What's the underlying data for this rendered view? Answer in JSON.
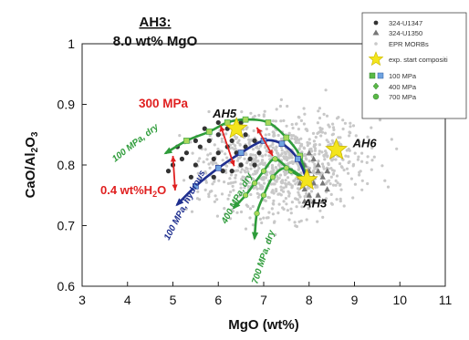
{
  "chart_data": {
    "type": "scatter",
    "title": "AH3:",
    "subtitle": "8.0 wt% MgO",
    "xlabel": "MgO (wt%)",
    "ylabel": "CaO/Al2O3",
    "ylabel_main": "CaO/Al",
    "ylabel_sub1": "2",
    "ylabel_mid": "O",
    "ylabel_sub2": "3",
    "xlim": [
      3,
      11
    ],
    "ylim": [
      0.6,
      1.0
    ],
    "xticks": [
      "3",
      "4",
      "5",
      "6",
      "7",
      "8",
      "9",
      "10",
      "11"
    ],
    "yticks": [
      "0.6",
      "0.7",
      "0.8",
      "0.9",
      "1"
    ],
    "legend": {
      "placement": "top-right",
      "entries": [
        "324-U1347",
        "324-U1350",
        "EPR MORBs",
        "exp. start compositi",
        "100 MPa",
        "400 MPa",
        "700 MPa"
      ]
    },
    "series": [
      {
        "name": "324-U1347",
        "color": "#333333",
        "marker": "circle",
        "x": [
          4.9,
          5.0,
          5.2,
          5.3,
          5.5,
          5.6,
          5.8,
          5.9,
          6.0,
          6.0,
          6.1,
          6.2,
          6.3,
          6.4,
          6.5,
          6.6,
          6.7,
          6.8,
          6.9,
          5.4,
          5.7,
          6.2,
          6.5,
          5.9,
          6.8,
          5.1,
          6.3,
          6.0,
          6.6,
          5.5
        ],
        "y": [
          0.79,
          0.8,
          0.81,
          0.82,
          0.8,
          0.83,
          0.84,
          0.81,
          0.82,
          0.85,
          0.79,
          0.83,
          0.84,
          0.82,
          0.8,
          0.83,
          0.81,
          0.84,
          0.82,
          0.78,
          0.86,
          0.86,
          0.87,
          0.78,
          0.8,
          0.83,
          0.79,
          0.87,
          0.85,
          0.84
        ]
      },
      {
        "name": "324-U1350",
        "color": "#777777",
        "marker": "triangle",
        "x": [
          7.8,
          7.9,
          8.0,
          8.1,
          8.2,
          8.3,
          8.4,
          7.9,
          8.1,
          8.2,
          8.0,
          8.3,
          8.1,
          7.8,
          8.2,
          8.0,
          8.4,
          7.9,
          8.1,
          8.3
        ],
        "y": [
          0.78,
          0.76,
          0.79,
          0.77,
          0.75,
          0.78,
          0.76,
          0.8,
          0.81,
          0.79,
          0.75,
          0.74,
          0.74,
          0.77,
          0.8,
          0.82,
          0.79,
          0.74,
          0.78,
          0.77
        ]
      }
    ],
    "morb_cloud": {
      "name": "EPR MORBs",
      "color": "#c8c8c8",
      "center": [
        7.4,
        0.8
      ],
      "spread": [
        1.15,
        0.055
      ],
      "count": 900
    },
    "start_compositions": [
      {
        "label": "AH5",
        "x": 6.4,
        "y": 0.86
      },
      {
        "label": "AH6",
        "x": 8.6,
        "y": 0.825
      },
      {
        "label": "AH3",
        "x": 7.95,
        "y": 0.775
      }
    ],
    "paths": [
      {
        "label": "100 MPa, dry",
        "color": "#2e9c3a",
        "marker": "square",
        "x": [
          7.95,
          7.8,
          7.5,
          7.1,
          6.6,
          6.2,
          5.8,
          5.3,
          4.85
        ],
        "y": [
          0.775,
          0.815,
          0.845,
          0.87,
          0.875,
          0.87,
          0.855,
          0.84,
          0.82
        ]
      },
      {
        "label": "100 MPa, hydrous",
        "color": "#1f2f8f",
        "marker": "square",
        "x": [
          7.95,
          7.75,
          7.4,
          7.0,
          6.5,
          6.0,
          5.5,
          5.1
        ],
        "y": [
          0.775,
          0.81,
          0.835,
          0.84,
          0.82,
          0.795,
          0.765,
          0.735
        ]
      },
      {
        "label": "400 MPa, dry",
        "color": "#2e9c3a",
        "marker": "circle",
        "x": [
          7.95,
          7.6,
          7.25,
          7.0,
          6.8,
          6.6,
          6.35
        ],
        "y": [
          0.775,
          0.79,
          0.81,
          0.79,
          0.77,
          0.75,
          0.73
        ]
      },
      {
        "label": "700 MPa, dry",
        "color": "#2e9c3a",
        "marker": "circle",
        "x": [
          7.95,
          7.5,
          7.2,
          7.0,
          6.85,
          6.8
        ],
        "y": [
          0.775,
          0.795,
          0.78,
          0.75,
          0.72,
          0.68
        ]
      }
    ],
    "annotations": [
      {
        "text": "300 MPa",
        "color": "#e02020"
      },
      {
        "text": "0.4 wt%H",
        "sub": "2",
        "tail": "O",
        "color": "#e02020"
      }
    ],
    "colors": {
      "dry_path": "#2e9c3a",
      "hydrous_path": "#1f2f8f",
      "arrow": "#e02020",
      "star": "#f4e51c"
    }
  }
}
